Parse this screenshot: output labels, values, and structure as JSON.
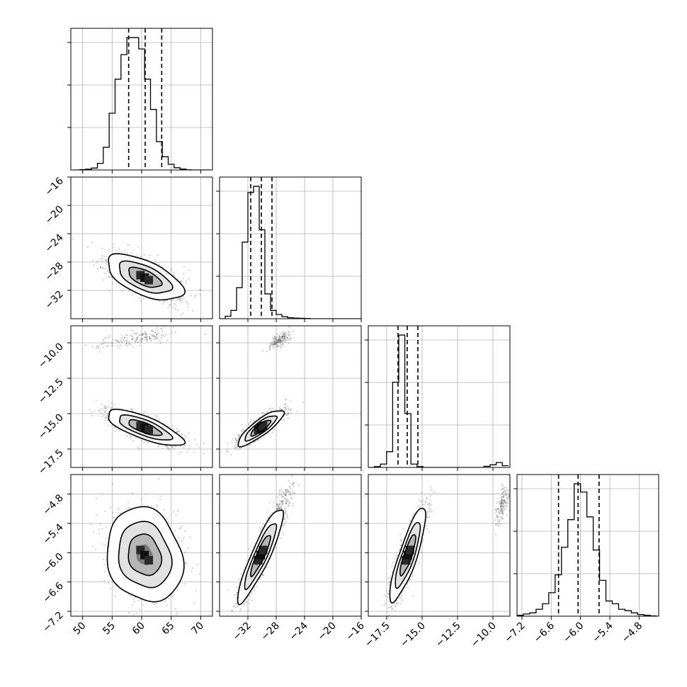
{
  "chart_data": {
    "type": "corner",
    "parameters": [
      {
        "range": [
          48.0,
          72.0
        ],
        "ticks": [
          50,
          55,
          60,
          65,
          70
        ],
        "tick_labels": [
          "50",
          "55",
          "60",
          "65",
          "70"
        ],
        "center": 60.5,
        "sigma": 2.8,
        "quantiles": [
          57.8,
          60.6,
          63.4
        ]
      },
      {
        "range": [
          -36.0,
          -16.0
        ],
        "ticks": [
          -32,
          -28,
          -24,
          -20,
          -16
        ],
        "tick_labels": [
          "−32",
          "−28",
          "−24",
          "−20",
          "−16"
        ],
        "center": -30.2,
        "sigma": 1.4,
        "quantiles": [
          -31.6,
          -30.1,
          -28.6
        ]
      },
      {
        "range": [
          -18.8,
          -8.8
        ],
        "ticks": [
          -17.5,
          -15.0,
          -12.5,
          -10.0
        ],
        "tick_labels": [
          "−17.5",
          "−15.0",
          "−12.5",
          "−10.0"
        ],
        "center": -16.0,
        "sigma": 0.55,
        "quantiles": [
          -16.7,
          -16.05,
          -15.3
        ]
      },
      {
        "range": [
          -7.3,
          -4.4
        ],
        "ticks": [
          -7.2,
          -6.6,
          -6.0,
          -5.4,
          -4.8
        ],
        "tick_labels": [
          "−7.2",
          "−6.6",
          "−6.0",
          "−5.4",
          "−4.8"
        ],
        "center": -6.05,
        "sigma": 0.42,
        "quantiles": [
          -6.45,
          -6.05,
          -5.62
        ]
      }
    ],
    "histograms": [
      {
        "param": 0,
        "bin_width": 1.0,
        "bin_start": 48.5,
        "counts": [
          0,
          2,
          4,
          10,
          35,
          120,
          300,
          480,
          610,
          700,
          700,
          640,
          480,
          320,
          150,
          70,
          30,
          12,
          5,
          1,
          0,
          0,
          0
        ]
      },
      {
        "param": 1,
        "bin_width": 0.8,
        "bin_start": -36.0,
        "counts": [
          0,
          12,
          40,
          150,
          370,
          610,
          640,
          430,
          120,
          40,
          20,
          10,
          5,
          3,
          2,
          1,
          0,
          0,
          0,
          0,
          0,
          0,
          0,
          0,
          0
        ]
      },
      {
        "param": 2,
        "bin_width": 0.43,
        "bin_start": -18.8,
        "counts": [
          0,
          4,
          15,
          70,
          380,
          590,
          240,
          15,
          4,
          0,
          0,
          0,
          0,
          0,
          0,
          0,
          0,
          0,
          0,
          5,
          12,
          22,
          8
        ]
      },
      {
        "param": 3,
        "bin_width": 0.13,
        "bin_start": -7.3,
        "counts": [
          3,
          8,
          12,
          25,
          45,
          85,
          150,
          250,
          350,
          480,
          450,
          360,
          240,
          130,
          55,
          45,
          25,
          20,
          12,
          6,
          3,
          1
        ]
      }
    ],
    "grid_on": true,
    "scatter_color": "#555555",
    "density_cmap": [
      "#ffffff",
      "#000000"
    ]
  }
}
